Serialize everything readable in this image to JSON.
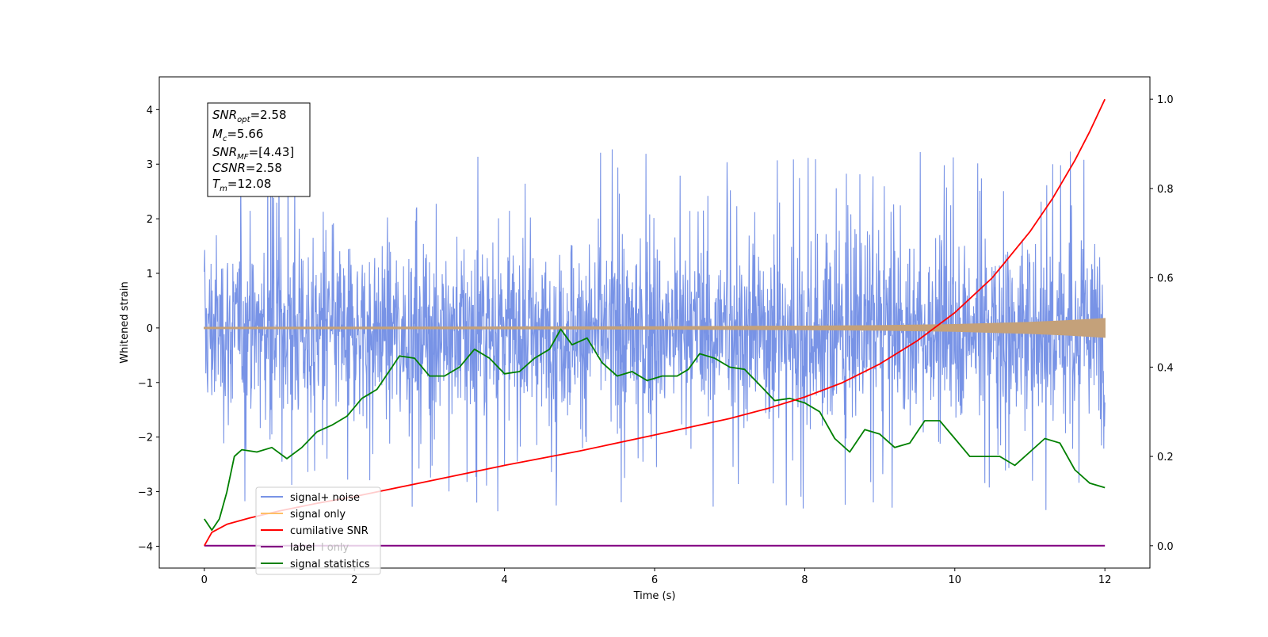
{
  "chart_data": {
    "type": "line",
    "title": "",
    "xlabel": "Time (s)",
    "ylabel": "Whitened strain",
    "xlim": [
      -0.6,
      12.6
    ],
    "ylim": [
      -4.4,
      4.6
    ],
    "y2lim": [
      -0.05,
      1.05
    ],
    "x_ticks": [
      0,
      2,
      4,
      6,
      8,
      10,
      12
    ],
    "y_ticks": [
      -4,
      -3,
      -2,
      -1,
      0,
      1,
      2,
      3,
      4
    ],
    "y2_ticks": [
      0.0,
      0.2,
      0.4,
      0.6,
      0.8,
      1.0
    ],
    "x_tick_labels": [
      "0",
      "2",
      "4",
      "6",
      "8",
      "10",
      "12"
    ],
    "y_tick_labels": [
      "−4",
      "−3",
      "−2",
      "−1",
      "0",
      "1",
      "2",
      "3",
      "4"
    ],
    "y2_tick_labels": [
      "0.0",
      "0.2",
      "0.4",
      "0.6",
      "0.8",
      "1.0"
    ],
    "info_box": {
      "snr_opt": "2.58",
      "mc": "5.66",
      "snr_mf": "[4.43]",
      "csnr": "2.58",
      "tm": "12.08"
    },
    "series": [
      {
        "name": "signal+ noise",
        "color": "#7893e6",
        "axis": "left",
        "x_range": [
          0,
          12
        ],
        "mean": 0.0,
        "envelope_upper": 1.8,
        "envelope_lower": -1.9,
        "spike_max": 4.2,
        "spike_min": -4.0
      },
      {
        "name": "signal only",
        "color": "#c4a17a",
        "axis": "left",
        "x": [
          0,
          4,
          6,
          8,
          9,
          10,
          10.5,
          11,
          11.5,
          12
        ],
        "amplitude": [
          0.01,
          0.015,
          0.02,
          0.03,
          0.04,
          0.06,
          0.08,
          0.1,
          0.13,
          0.17
        ]
      },
      {
        "name": "cumilative SNR",
        "color": "#ff0000",
        "axis": "right",
        "x": [
          0.0,
          0.1,
          0.3,
          0.6,
          1.0,
          1.5,
          2.0,
          3.0,
          4.0,
          5.0,
          6.0,
          7.0,
          7.5,
          8.0,
          8.5,
          9.0,
          9.5,
          10.0,
          10.5,
          11.0,
          11.3,
          11.6,
          11.8,
          12.0
        ],
        "y": [
          0.0,
          0.03,
          0.048,
          0.062,
          0.078,
          0.095,
          0.11,
          0.145,
          0.18,
          0.212,
          0.248,
          0.285,
          0.307,
          0.333,
          0.365,
          0.407,
          0.459,
          0.522,
          0.6,
          0.703,
          0.777,
          0.863,
          0.928,
          1.0
        ]
      },
      {
        "name": "label only",
        "color": "#800080",
        "axis": "right",
        "x": [
          0,
          12
        ],
        "y": [
          0.0,
          0.0
        ]
      },
      {
        "name": "signal statistics",
        "color": "#008000",
        "axis": "right",
        "x": [
          0.0,
          0.1,
          0.2,
          0.3,
          0.4,
          0.5,
          0.7,
          0.9,
          1.1,
          1.3,
          1.5,
          1.7,
          1.9,
          2.1,
          2.3,
          2.5,
          2.6,
          2.8,
          3.0,
          3.2,
          3.4,
          3.6,
          3.8,
          4.0,
          4.2,
          4.4,
          4.6,
          4.75,
          4.9,
          5.1,
          5.3,
          5.5,
          5.7,
          5.9,
          6.1,
          6.3,
          6.45,
          6.6,
          6.8,
          7.0,
          7.2,
          7.4,
          7.6,
          7.8,
          8.0,
          8.2,
          8.4,
          8.6,
          8.8,
          9.0,
          9.2,
          9.4,
          9.6,
          9.8,
          10.0,
          10.2,
          10.4,
          10.6,
          10.8,
          11.0,
          11.2,
          11.4,
          11.6,
          11.8,
          12.0
        ],
        "y": [
          0.06,
          0.035,
          0.06,
          0.12,
          0.2,
          0.215,
          0.21,
          0.22,
          0.195,
          0.22,
          0.255,
          0.27,
          0.29,
          0.33,
          0.35,
          0.4,
          0.425,
          0.42,
          0.38,
          0.38,
          0.4,
          0.44,
          0.42,
          0.385,
          0.39,
          0.42,
          0.44,
          0.485,
          0.45,
          0.465,
          0.41,
          0.38,
          0.39,
          0.37,
          0.38,
          0.38,
          0.395,
          0.43,
          0.42,
          0.4,
          0.395,
          0.36,
          0.325,
          0.33,
          0.32,
          0.3,
          0.24,
          0.21,
          0.26,
          0.25,
          0.22,
          0.23,
          0.28,
          0.28,
          0.24,
          0.2,
          0.2,
          0.2,
          0.18,
          0.21,
          0.24,
          0.23,
          0.17,
          0.14,
          0.13
        ]
      }
    ],
    "legend": {
      "placement": "lower-left",
      "entries": [
        {
          "label": "signal+ noise",
          "color": "#7893e6"
        },
        {
          "label": "signal only",
          "color": "#ffbf66"
        },
        {
          "label": "cumilative SNR",
          "color": "#ff0000"
        },
        {
          "label": "label",
          "color": "#800080"
        },
        {
          "label": "signal statistics",
          "color": "#008000"
        }
      ],
      "overlapped_text": [
        "l only"
      ]
    }
  }
}
